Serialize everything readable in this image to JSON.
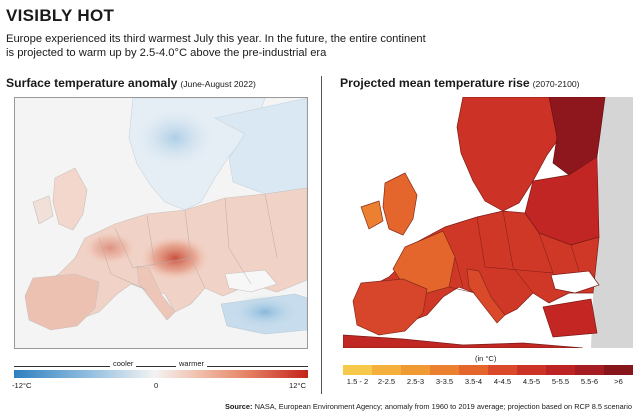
{
  "header": {
    "title": "VISIBLY HOT",
    "subtitle_lines": [
      "Europe experienced its third warmest July this year. In the future, the entire continent",
      "is projected to warm up by 2.5-4.0°C above the pre-industrial era"
    ]
  },
  "left_panel": {
    "title": "Surface temperature anomaly",
    "period": "(June-August 2022)",
    "legend": {
      "cooler_label": "cooler",
      "warmer_label": "warmer",
      "min_label": "-12°C",
      "mid_label": "0",
      "max_label": "12°C",
      "colors": [
        "#2f7fbf",
        "#f3f3f3",
        "#c4221a"
      ]
    }
  },
  "right_panel": {
    "title": "Projected mean temperature rise",
    "period": "(2070-2100)",
    "legend": {
      "unit": "(in °C)",
      "classes": [
        {
          "label": "1.5 - 2",
          "color": "#f6c94a"
        },
        {
          "label": "2-2.5",
          "color": "#f5b03c"
        },
        {
          "label": "2.5-3",
          "color": "#f09a34"
        },
        {
          "label": "3-3.5",
          "color": "#eb8130"
        },
        {
          "label": "3.5-4",
          "color": "#e4662c"
        },
        {
          "label": "4-4.5",
          "color": "#da4a2a"
        },
        {
          "label": "4.5-5",
          "color": "#cc3326"
        },
        {
          "label": "5-5.5",
          "color": "#bd2323"
        },
        {
          "label": "5.5-6",
          "color": "#a51c22"
        },
        {
          "label": ">6",
          "color": "#86151c"
        }
      ]
    }
  },
  "source": {
    "label": "Source:",
    "text": "NASA, European Environment Agency; anomaly from 1960 to 2019 average; projection based on RCP 8.5 scenario"
  }
}
